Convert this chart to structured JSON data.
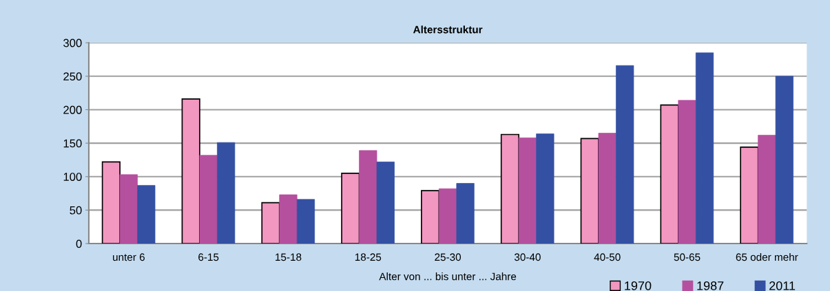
{
  "chart_data": {
    "type": "bar",
    "title": "Altersstruktur",
    "xlabel": "Alter von ... bis unter ... Jahre",
    "categories": [
      "unter 6",
      "6-15",
      "15-18",
      "18-25",
      "25-30",
      "30-40",
      "40-50",
      "50-65",
      "65 oder mehr"
    ],
    "series": [
      {
        "name": "1970",
        "color": "#f297c0",
        "values": [
          122,
          216,
          61,
          105,
          79,
          163,
          157,
          207,
          144
        ]
      },
      {
        "name": "1987",
        "color": "#b5509e",
        "values": [
          103,
          132,
          73,
          139,
          82,
          158,
          165,
          214,
          162
        ]
      },
      {
        "name": "2011",
        "color": "#3350a3",
        "values": [
          87,
          151,
          66,
          122,
          90,
          164,
          266,
          285,
          250
        ]
      }
    ],
    "ylim": [
      0,
      300
    ],
    "yticks": [
      0,
      50,
      100,
      150,
      200,
      250,
      300
    ],
    "grid": "y",
    "legend": "bottom right"
  }
}
